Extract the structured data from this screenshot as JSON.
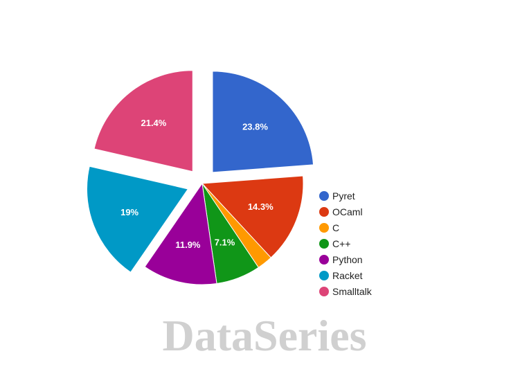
{
  "chart_data": {
    "type": "pie",
    "categories": [
      "Pyret",
      "OCaml",
      "C",
      "C++",
      "Python",
      "Racket",
      "Smalltalk"
    ],
    "values": [
      23.8,
      14.3,
      2.5,
      7.1,
      11.9,
      19.0,
      21.4
    ],
    "labels": [
      "23.8%",
      "14.3%",
      "",
      "7.1%",
      "11.9%",
      "19%",
      "21.4%"
    ],
    "colors": [
      "#3366cc",
      "#dc3912",
      "#ff9900",
      "#109618",
      "#990099",
      "#0099c6",
      "#dd4477"
    ],
    "exploded": [
      true,
      false,
      false,
      false,
      false,
      true,
      true
    ],
    "legend_position": "right"
  },
  "watermark": "DataSeries"
}
